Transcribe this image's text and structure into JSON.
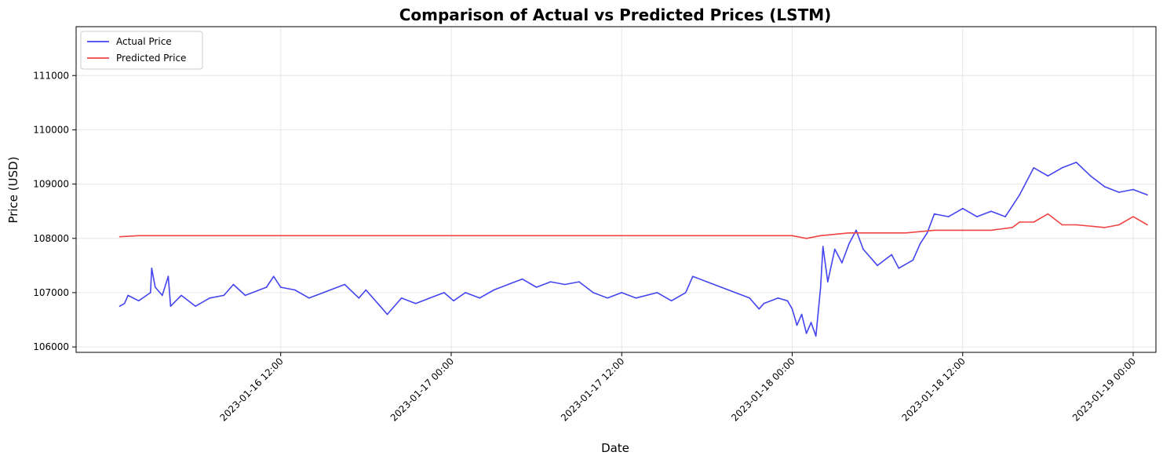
{
  "chart_data": {
    "type": "line",
    "title": "Comparison of Actual vs Predicted Prices (LSTM)",
    "xlabel": "Date",
    "ylabel": "Price (USD)",
    "x_type": "datetime",
    "xlim": [
      "2023-01-15 21:36",
      "2023-01-19 01:36"
    ],
    "ylim": [
      105900,
      111900
    ],
    "x_ticks": [
      "2023-01-16 12:00",
      "2023-01-17 00:00",
      "2023-01-17 12:00",
      "2023-01-18 00:00",
      "2023-01-18 12:00",
      "2023-01-19 00:00"
    ],
    "y_ticks": [
      106000,
      107000,
      108000,
      109000,
      110000,
      111000
    ],
    "grid": true,
    "legend_position": "upper-left",
    "series": [
      {
        "name": "Actual Price",
        "color": "#4444f0",
        "points": [
          [
            "2023-01-16 00:40",
            106750
          ],
          [
            "2023-01-16 01:00",
            106800
          ],
          [
            "2023-01-16 01:15",
            106950
          ],
          [
            "2023-01-16 02:00",
            106850
          ],
          [
            "2023-01-16 02:50",
            107000
          ],
          [
            "2023-01-16 02:55",
            107450
          ],
          [
            "2023-01-16 03:10",
            107100
          ],
          [
            "2023-01-16 03:40",
            106950
          ],
          [
            "2023-01-16 04:05",
            107300
          ],
          [
            "2023-01-16 04:15",
            106750
          ],
          [
            "2023-01-16 05:00",
            106950
          ],
          [
            "2023-01-16 06:00",
            106750
          ],
          [
            "2023-01-16 07:00",
            106900
          ],
          [
            "2023-01-16 08:00",
            106950
          ],
          [
            "2023-01-16 08:40",
            107150
          ],
          [
            "2023-01-16 09:30",
            106950
          ],
          [
            "2023-01-16 11:00",
            107100
          ],
          [
            "2023-01-16 11:30",
            107300
          ],
          [
            "2023-01-16 12:00",
            107100
          ],
          [
            "2023-01-16 13:00",
            107050
          ],
          [
            "2023-01-16 14:00",
            106900
          ],
          [
            "2023-01-16 15:00",
            107000
          ],
          [
            "2023-01-16 16:30",
            107150
          ],
          [
            "2023-01-16 17:30",
            106900
          ],
          [
            "2023-01-16 18:00",
            107050
          ],
          [
            "2023-01-16 19:00",
            106750
          ],
          [
            "2023-01-16 19:30",
            106600
          ],
          [
            "2023-01-16 20:30",
            106900
          ],
          [
            "2023-01-16 21:30",
            106800
          ],
          [
            "2023-01-16 22:30",
            106900
          ],
          [
            "2023-01-16 23:30",
            107000
          ],
          [
            "2023-01-17 00:10",
            106850
          ],
          [
            "2023-01-17 01:00",
            107000
          ],
          [
            "2023-01-17 02:00",
            106900
          ],
          [
            "2023-01-17 03:00",
            107050
          ],
          [
            "2023-01-17 04:00",
            107150
          ],
          [
            "2023-01-17 05:00",
            107250
          ],
          [
            "2023-01-17 06:00",
            107100
          ],
          [
            "2023-01-17 07:00",
            107200
          ],
          [
            "2023-01-17 08:00",
            107150
          ],
          [
            "2023-01-17 09:00",
            107200
          ],
          [
            "2023-01-17 10:00",
            107000
          ],
          [
            "2023-01-17 11:00",
            106900
          ],
          [
            "2023-01-17 12:00",
            107000
          ],
          [
            "2023-01-17 13:00",
            106900
          ],
          [
            "2023-01-17 14:30",
            107000
          ],
          [
            "2023-01-17 15:30",
            106850
          ],
          [
            "2023-01-17 16:30",
            107000
          ],
          [
            "2023-01-17 17:00",
            107300
          ],
          [
            "2023-01-17 18:00",
            107200
          ],
          [
            "2023-01-17 19:00",
            107100
          ],
          [
            "2023-01-17 20:00",
            107000
          ],
          [
            "2023-01-17 21:00",
            106900
          ],
          [
            "2023-01-17 21:40",
            106700
          ],
          [
            "2023-01-17 22:00",
            106800
          ],
          [
            "2023-01-17 23:00",
            106900
          ],
          [
            "2023-01-17 23:40",
            106850
          ],
          [
            "2023-01-18 00:00",
            106700
          ],
          [
            "2023-01-18 00:20",
            106400
          ],
          [
            "2023-01-18 00:40",
            106600
          ],
          [
            "2023-01-18 01:00",
            106250
          ],
          [
            "2023-01-18 01:20",
            106450
          ],
          [
            "2023-01-18 01:40",
            106200
          ],
          [
            "2023-01-18 02:00",
            107100
          ],
          [
            "2023-01-18 02:10",
            107850
          ],
          [
            "2023-01-18 02:30",
            107200
          ],
          [
            "2023-01-18 03:00",
            107800
          ],
          [
            "2023-01-18 03:30",
            107550
          ],
          [
            "2023-01-18 04:00",
            107900
          ],
          [
            "2023-01-18 04:30",
            108150
          ],
          [
            "2023-01-18 05:00",
            107800
          ],
          [
            "2023-01-18 06:00",
            107500
          ],
          [
            "2023-01-18 07:00",
            107700
          ],
          [
            "2023-01-18 07:30",
            107450
          ],
          [
            "2023-01-18 08:30",
            107600
          ],
          [
            "2023-01-18 09:00",
            107900
          ],
          [
            "2023-01-18 09:30",
            108100
          ],
          [
            "2023-01-18 10:00",
            108450
          ],
          [
            "2023-01-18 11:00",
            108400
          ],
          [
            "2023-01-18 12:00",
            108550
          ],
          [
            "2023-01-18 13:00",
            108400
          ],
          [
            "2023-01-18 14:00",
            108500
          ],
          [
            "2023-01-18 15:00",
            108400
          ],
          [
            "2023-01-18 16:00",
            108800
          ],
          [
            "2023-01-18 17:00",
            109300
          ],
          [
            "2023-01-18 18:00",
            109150
          ],
          [
            "2023-01-18 19:00",
            109300
          ],
          [
            "2023-01-18 20:00",
            109400
          ],
          [
            "2023-01-18 21:00",
            109150
          ],
          [
            "2023-01-18 22:00",
            108950
          ],
          [
            "2023-01-18 23:00",
            108850
          ],
          [
            "2023-01-19 00:00",
            108900
          ],
          [
            "2023-01-19 01:00",
            108800
          ]
        ]
      },
      {
        "name": "Predicted Price",
        "color": "#f04444",
        "points": [
          [
            "2023-01-16 00:40",
            108030
          ],
          [
            "2023-01-16 02:00",
            108050
          ],
          [
            "2023-01-16 06:00",
            108050
          ],
          [
            "2023-01-16 12:00",
            108050
          ],
          [
            "2023-01-16 18:00",
            108050
          ],
          [
            "2023-01-17 00:00",
            108050
          ],
          [
            "2023-01-17 06:00",
            108050
          ],
          [
            "2023-01-17 12:00",
            108050
          ],
          [
            "2023-01-17 18:00",
            108050
          ],
          [
            "2023-01-17 22:00",
            108050
          ],
          [
            "2023-01-18 00:00",
            108050
          ],
          [
            "2023-01-18 01:00",
            108000
          ],
          [
            "2023-01-18 02:00",
            108050
          ],
          [
            "2023-01-18 04:00",
            108100
          ],
          [
            "2023-01-18 06:00",
            108100
          ],
          [
            "2023-01-18 08:00",
            108100
          ],
          [
            "2023-01-18 10:00",
            108150
          ],
          [
            "2023-01-18 12:00",
            108150
          ],
          [
            "2023-01-18 14:00",
            108150
          ],
          [
            "2023-01-18 15:30",
            108200
          ],
          [
            "2023-01-18 16:00",
            108300
          ],
          [
            "2023-01-18 17:00",
            108300
          ],
          [
            "2023-01-18 18:00",
            108450
          ],
          [
            "2023-01-18 19:00",
            108250
          ],
          [
            "2023-01-18 20:00",
            108250
          ],
          [
            "2023-01-18 22:00",
            108200
          ],
          [
            "2023-01-18 23:00",
            108250
          ],
          [
            "2023-01-19 00:00",
            108400
          ],
          [
            "2023-01-19 01:00",
            108250
          ]
        ]
      }
    ]
  }
}
